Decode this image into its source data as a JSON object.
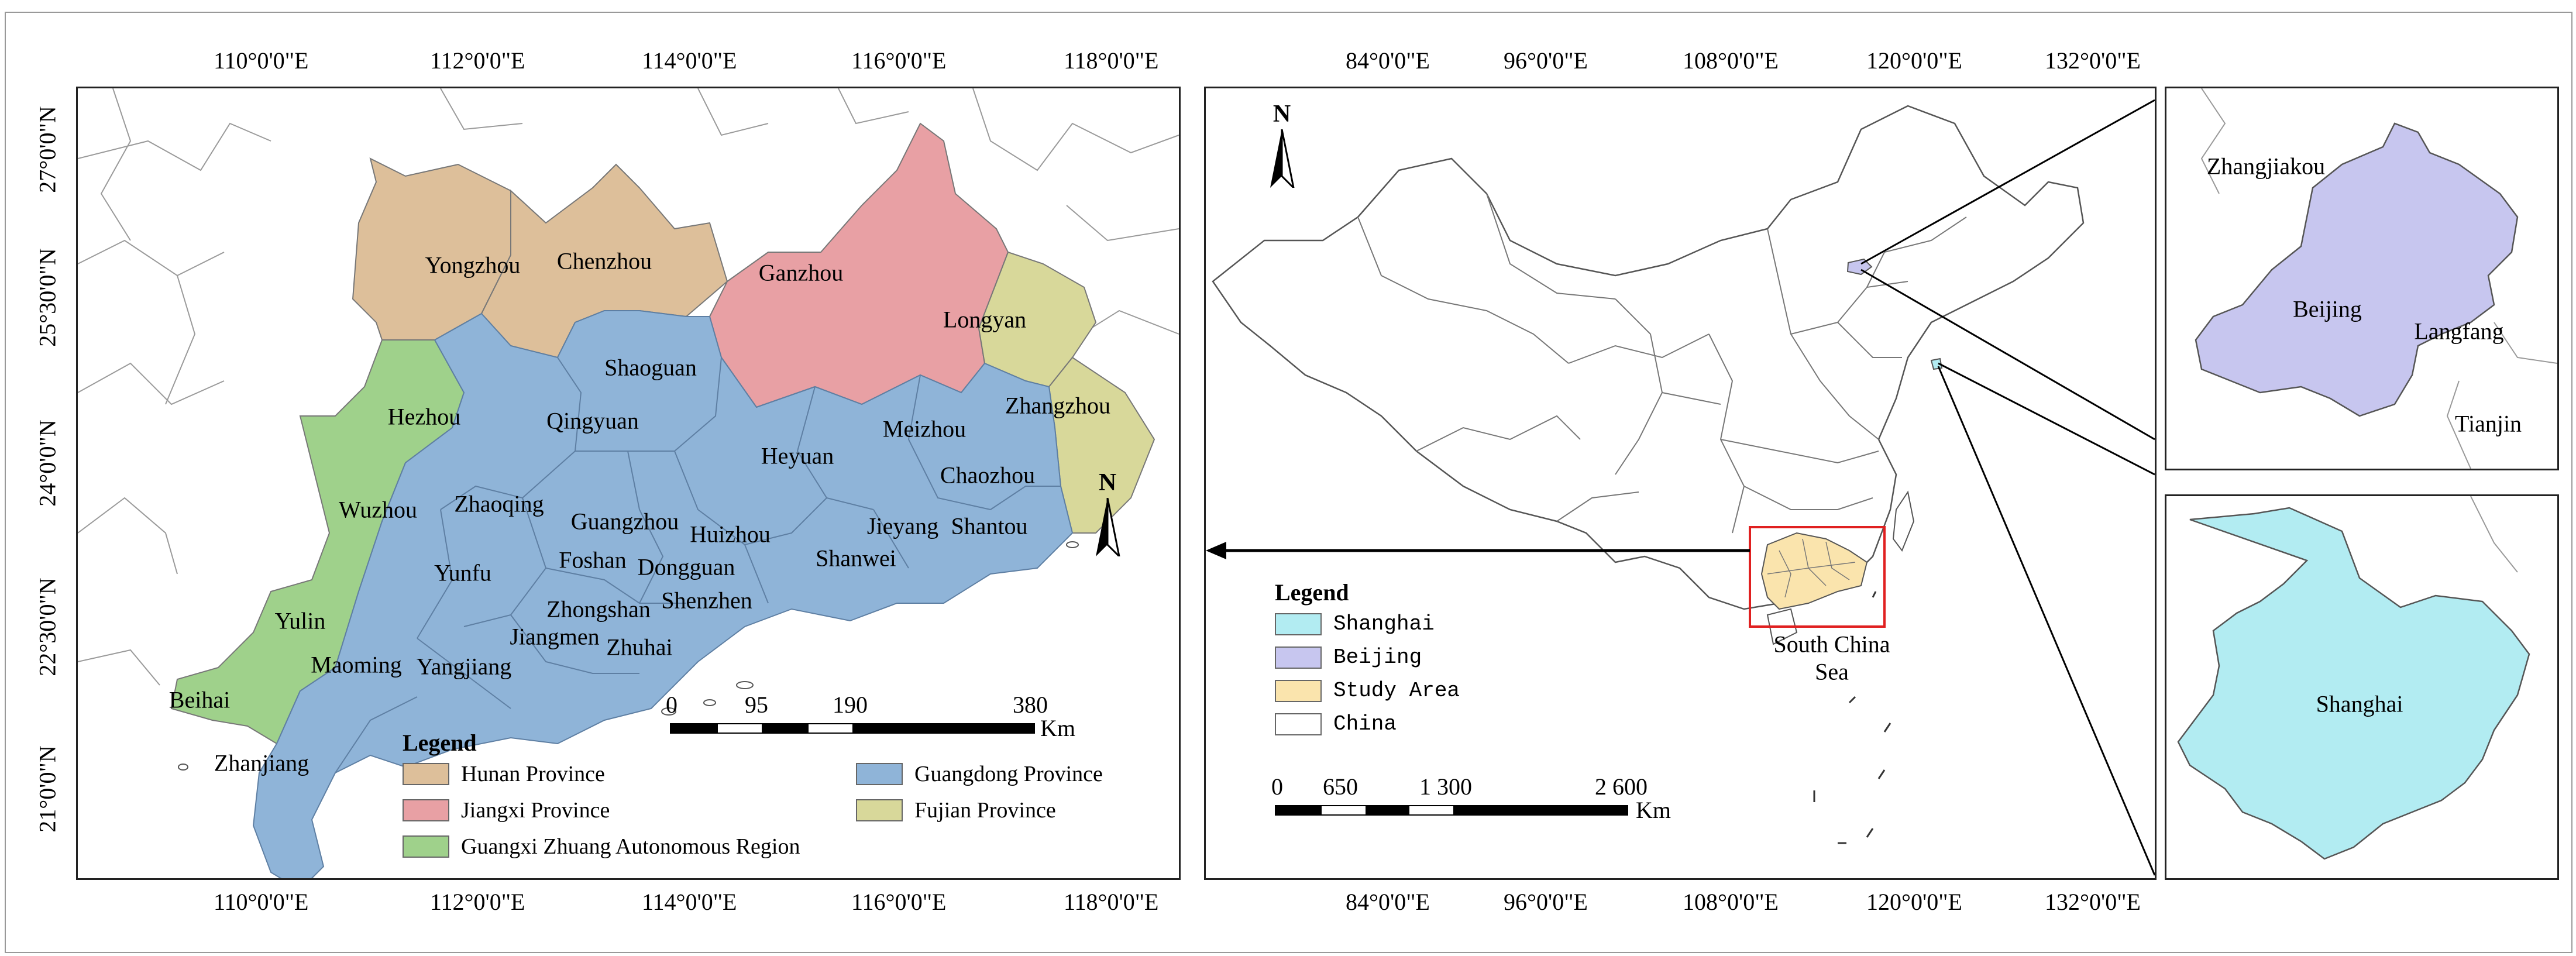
{
  "colors": {
    "hunan": "#ddbf9a",
    "jiangxi": "#e8a0a4",
    "guangxi": "#9fd18b",
    "guangdong": "#8fb4d8",
    "fujian": "#d8d89a",
    "shanghai": "#b2ecf2",
    "beijing": "#c7c6ef",
    "study_area": "#fae4ad",
    "china": "#ffffff",
    "highlight": "#e02020"
  },
  "left_map": {
    "top_ticks": [
      "110°0'0\"E",
      "112°0'0\"E",
      "114°0'0\"E",
      "116°0'0\"E",
      "118°0'0\"E"
    ],
    "bottom_ticks": [
      "110°0'0\"E",
      "112°0'0\"E",
      "114°0'0\"E",
      "116°0'0\"E",
      "118°0'0\"E"
    ],
    "left_ticks": [
      "27°0'0\"N",
      "25°30'0\"N",
      "24°0'0\"N",
      "22°30'0\"N",
      "21°0'0\"N"
    ],
    "north": "N",
    "cities": {
      "yongzhou": "Yongzhou",
      "chenzhou": "Chenzhou",
      "ganzhou": "Ganzhou",
      "longyan": "Longyan",
      "shaoguan": "Shaoguan",
      "zhangzhou": "Zhangzhou",
      "hezhou": "Hezhou",
      "qingyuan": "Qingyuan",
      "heyuan": "Heyuan",
      "meizhou": "Meizhou",
      "chaozhou": "Chaozhou",
      "wuzhou": "Wuzhou",
      "zhaoqing": "Zhaoqing",
      "guangzhou": "Guangzhou",
      "huizhou": "Huizhou",
      "jieyang": "Jieyang",
      "shantou": "Shantou",
      "yunfu": "Yunfu",
      "foshan": "Foshan",
      "dongguan": "Dongguan",
      "shanwei": "Shanwei",
      "shenzhen": "Shenzhen",
      "yulin": "Yulin",
      "zhongshan": "Zhongshan",
      "jiangmen": "Jiangmen",
      "zhuhai": "Zhuhai",
      "maoming": "Maoming",
      "yangjiang": "Yangjiang",
      "beihai": "Beihai",
      "zhanjiang": "Zhanjiang"
    },
    "scale": {
      "labels": [
        "0",
        "95",
        "190",
        "380"
      ],
      "unit": "Km"
    },
    "legend": {
      "title": "Legend",
      "hunan": "Hunan Province",
      "jiangxi": "Jiangxi Province",
      "guangxi": "Guangxi Zhuang Autonomous Region",
      "guangdong": "Guangdong Province",
      "fujian": "Fujian Province"
    }
  },
  "center_map": {
    "top_ticks": [
      "84°0'0\"E",
      "96°0'0\"E",
      "108°0'0\"E",
      "120°0'0\"E",
      "132°0'0\"E"
    ],
    "bottom_ticks": [
      "84°0'0\"E",
      "96°0'0\"E",
      "108°0'0\"E",
      "120°0'0\"E",
      "132°0'0\"E"
    ],
    "north": "N",
    "sea_label_1": "South China",
    "sea_label_2": "Sea",
    "scale": {
      "labels": [
        "0",
        "650",
        "1 300",
        "2 600"
      ],
      "unit": "Km"
    },
    "legend": {
      "title": "Legend",
      "shanghai": "Shanghai",
      "beijing": "Beijing",
      "study_area": "Study Area",
      "china": "China"
    }
  },
  "beijing_inset": {
    "zhangjiakou": "Zhangjiakou",
    "beijing": "Beijing",
    "langfang": "Langfang",
    "tianjin": "Tianjin"
  },
  "shanghai_inset": {
    "shanghai": "Shanghai"
  }
}
